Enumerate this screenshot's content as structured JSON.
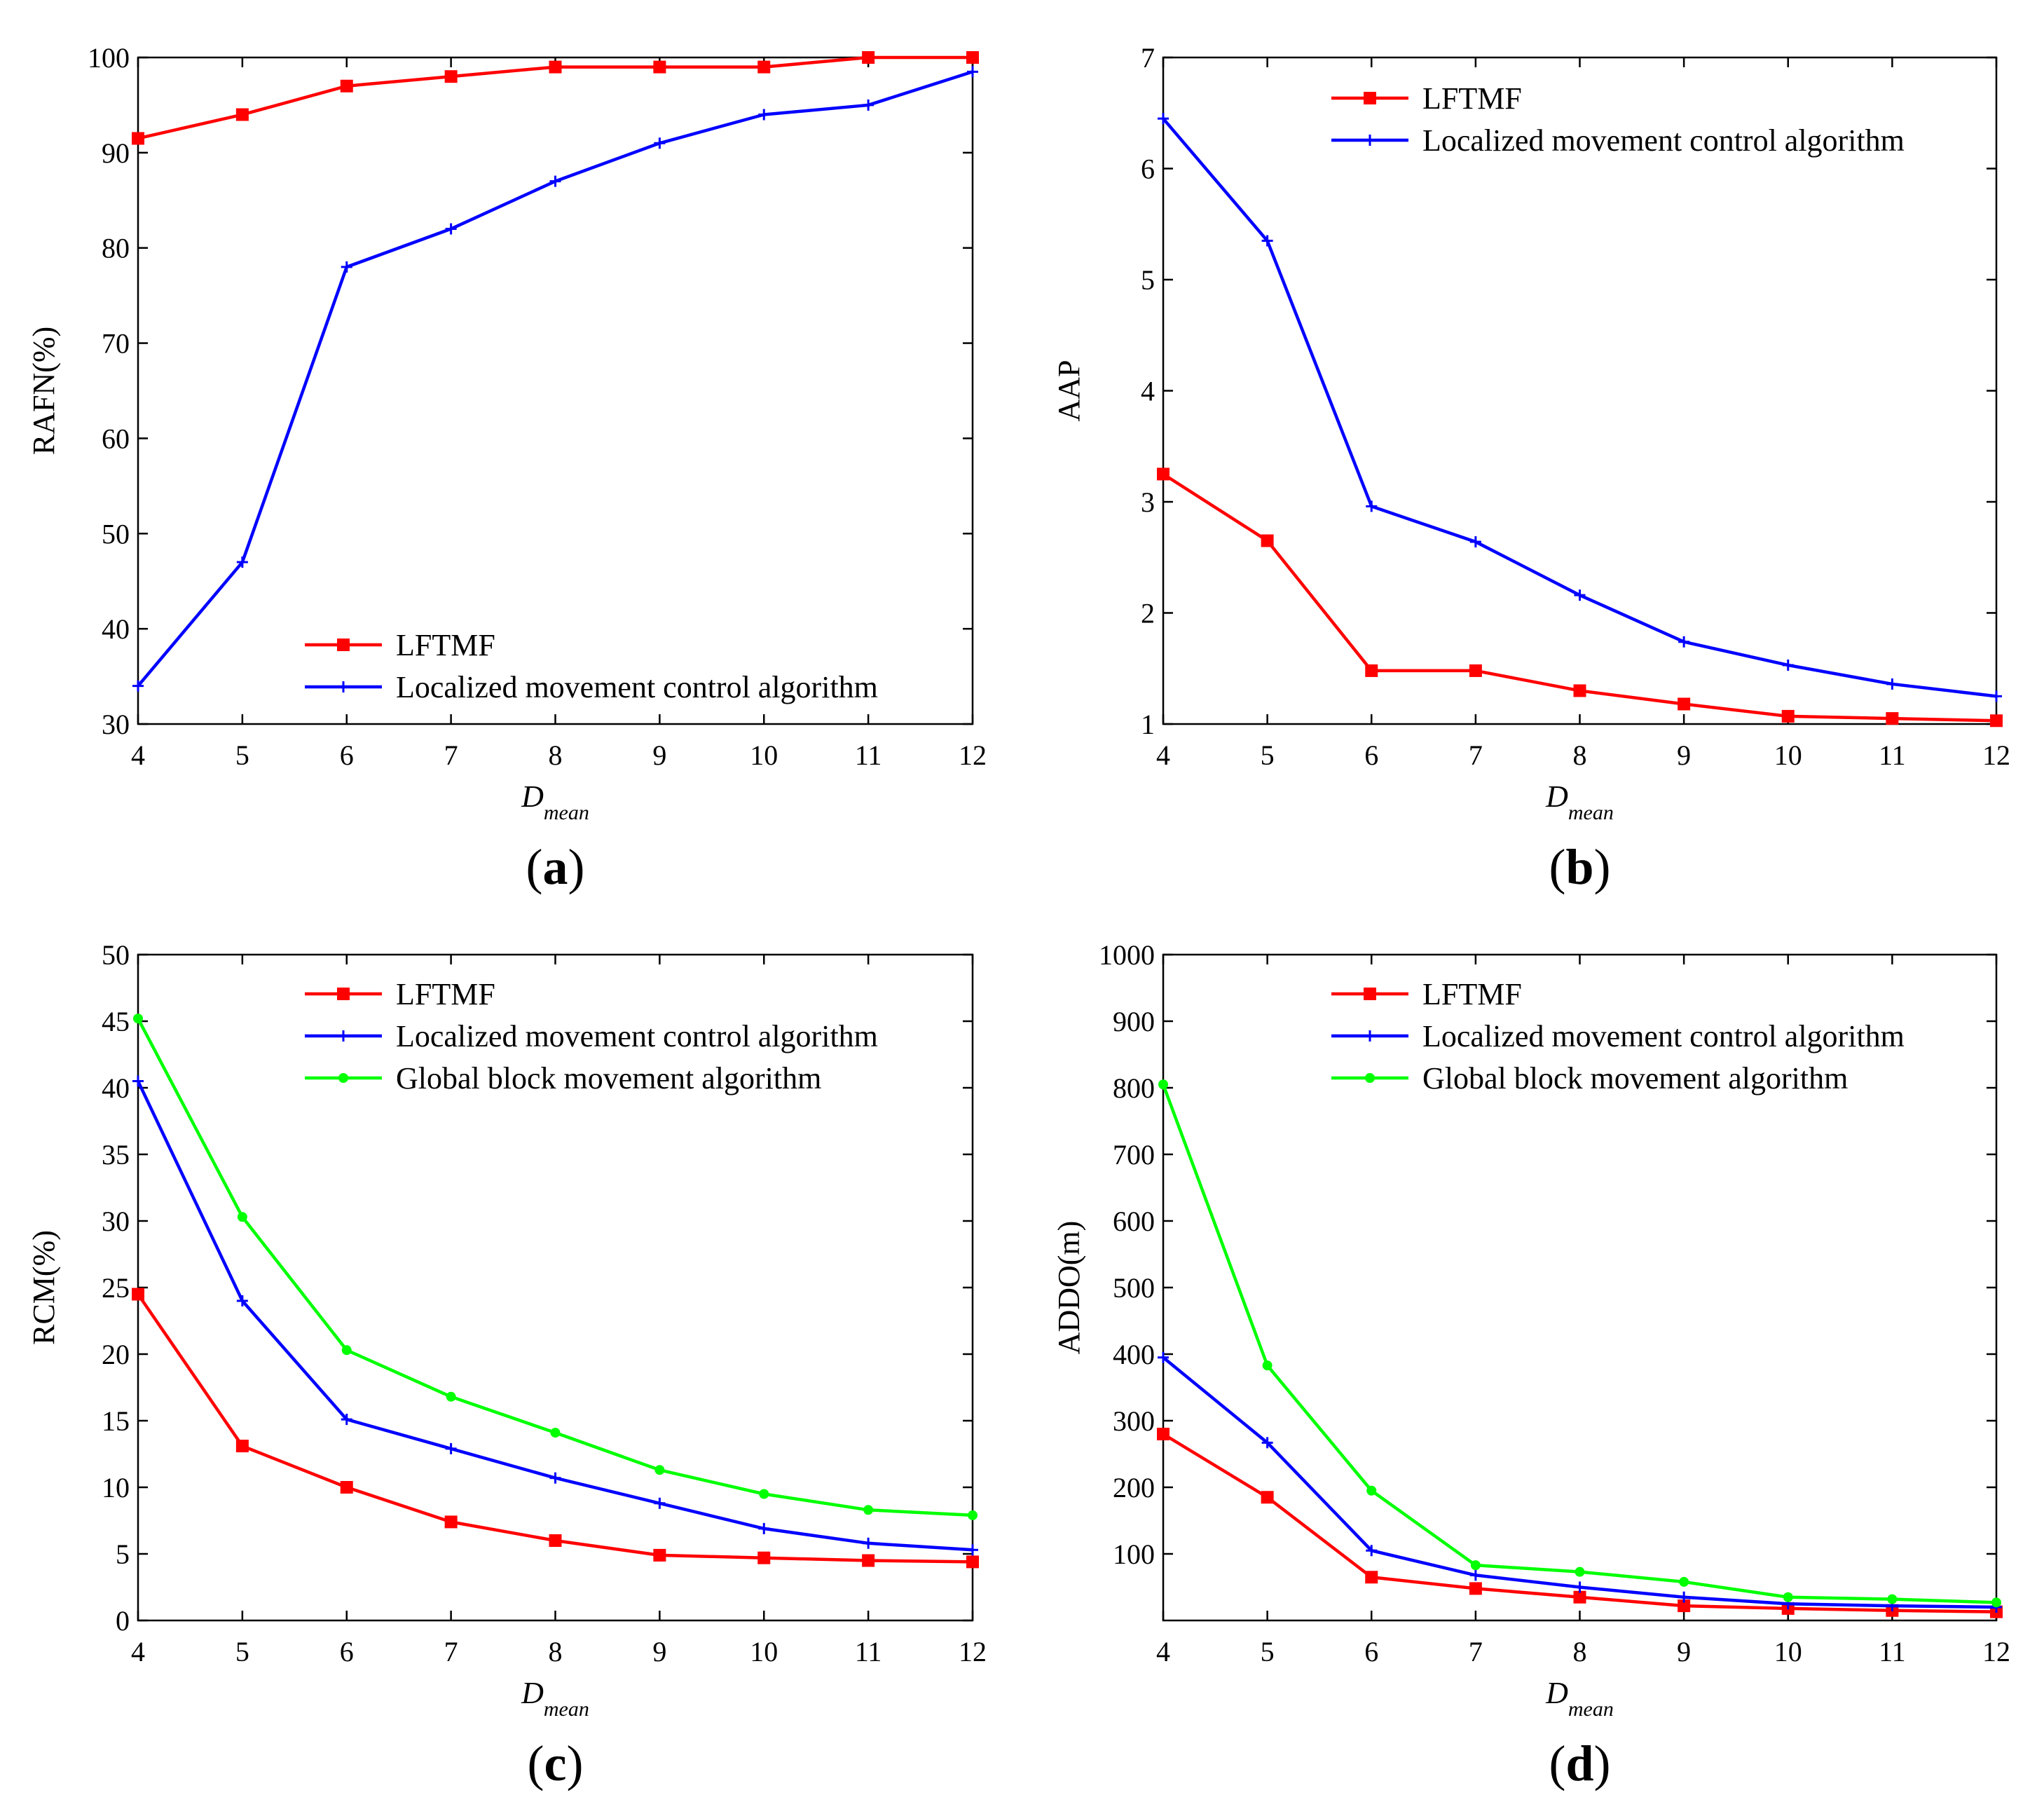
{
  "chart_data": [
    {
      "type": "line",
      "panel": "a",
      "xlabel": "D",
      "xlabel_sub": "mean",
      "ylabel": "RAFN(%)",
      "x": [
        4,
        5,
        6,
        7,
        8,
        9,
        10,
        11,
        12
      ],
      "xlim": [
        4,
        12
      ],
      "ylim": [
        30,
        100
      ],
      "yticks": [
        30,
        40,
        50,
        60,
        70,
        80,
        90,
        100
      ],
      "legend_position": "bottom-right",
      "series": [
        {
          "name": "LFTMF",
          "color": "#ff0000",
          "marker": "square",
          "values": [
            91.5,
            94,
            97,
            98,
            99,
            99,
            99,
            100,
            100
          ]
        },
        {
          "name": "Localized movement control algorithm",
          "color": "#0000ff",
          "marker": "plus",
          "values": [
            34,
            47,
            78,
            82,
            87,
            91,
            94,
            95,
            98.5
          ]
        }
      ]
    },
    {
      "type": "line",
      "panel": "b",
      "xlabel": "D",
      "xlabel_sub": "mean",
      "ylabel": "AAP",
      "x": [
        4,
        5,
        6,
        7,
        8,
        9,
        10,
        11,
        12
      ],
      "xlim": [
        4,
        12
      ],
      "ylim": [
        1,
        7
      ],
      "yticks": [
        1,
        2,
        3,
        4,
        5,
        6,
        7
      ],
      "legend_position": "top-right",
      "series": [
        {
          "name": "LFTMF",
          "color": "#ff0000",
          "marker": "square",
          "values": [
            3.25,
            2.65,
            1.48,
            1.48,
            1.3,
            1.18,
            1.07,
            1.05,
            1.03
          ]
        },
        {
          "name": "Localized movement control algorithm",
          "color": "#0000ff",
          "marker": "plus",
          "values": [
            6.45,
            5.35,
            2.96,
            2.64,
            2.16,
            1.74,
            1.53,
            1.36,
            1.25
          ]
        }
      ]
    },
    {
      "type": "line",
      "panel": "c",
      "xlabel": "D",
      "xlabel_sub": "mean",
      "ylabel": "RCM(%)",
      "x": [
        4,
        5,
        6,
        7,
        8,
        9,
        10,
        11,
        12
      ],
      "xlim": [
        4,
        12
      ],
      "ylim": [
        0,
        50
      ],
      "yticks": [
        0,
        5,
        10,
        15,
        20,
        25,
        30,
        35,
        40,
        45,
        50
      ],
      "legend_position": "top-right",
      "series": [
        {
          "name": "LFTMF",
          "color": "#ff0000",
          "marker": "square",
          "values": [
            24.5,
            13.1,
            10,
            7.4,
            6,
            4.9,
            4.7,
            4.5,
            4.4
          ]
        },
        {
          "name": "Localized movement control algorithm",
          "color": "#0000ff",
          "marker": "plus",
          "values": [
            40.5,
            24,
            15.1,
            12.9,
            10.7,
            8.8,
            6.9,
            5.8,
            5.3
          ]
        },
        {
          "name": "Global block movement algorithm",
          "color": "#00ff00",
          "marker": "dot",
          "values": [
            45.2,
            30.3,
            20.3,
            16.8,
            14.1,
            11.3,
            9.5,
            8.3,
            7.9
          ]
        }
      ]
    },
    {
      "type": "line",
      "panel": "d",
      "xlabel": "D",
      "xlabel_sub": "mean",
      "ylabel": "ADDO(m)",
      "x": [
        4,
        5,
        6,
        7,
        8,
        9,
        10,
        11,
        12
      ],
      "xlim": [
        4,
        12
      ],
      "ylim": [
        0,
        1000
      ],
      "yticks": [
        100,
        200,
        300,
        400,
        500,
        600,
        700,
        800,
        900,
        1000
      ],
      "legend_position": "top-right",
      "series": [
        {
          "name": "LFTMF",
          "color": "#ff0000",
          "marker": "square",
          "values": [
            280,
            185,
            65,
            48,
            35,
            22,
            18,
            15,
            13
          ]
        },
        {
          "name": "Localized movement control algorithm",
          "color": "#0000ff",
          "marker": "plus",
          "values": [
            395,
            267,
            105,
            68,
            50,
            35,
            25,
            22,
            20
          ]
        },
        {
          "name": "Global block movement algorithm",
          "color": "#00ff00",
          "marker": "dot",
          "values": [
            805,
            383,
            195,
            83,
            73,
            58,
            35,
            32,
            27
          ]
        }
      ]
    }
  ]
}
